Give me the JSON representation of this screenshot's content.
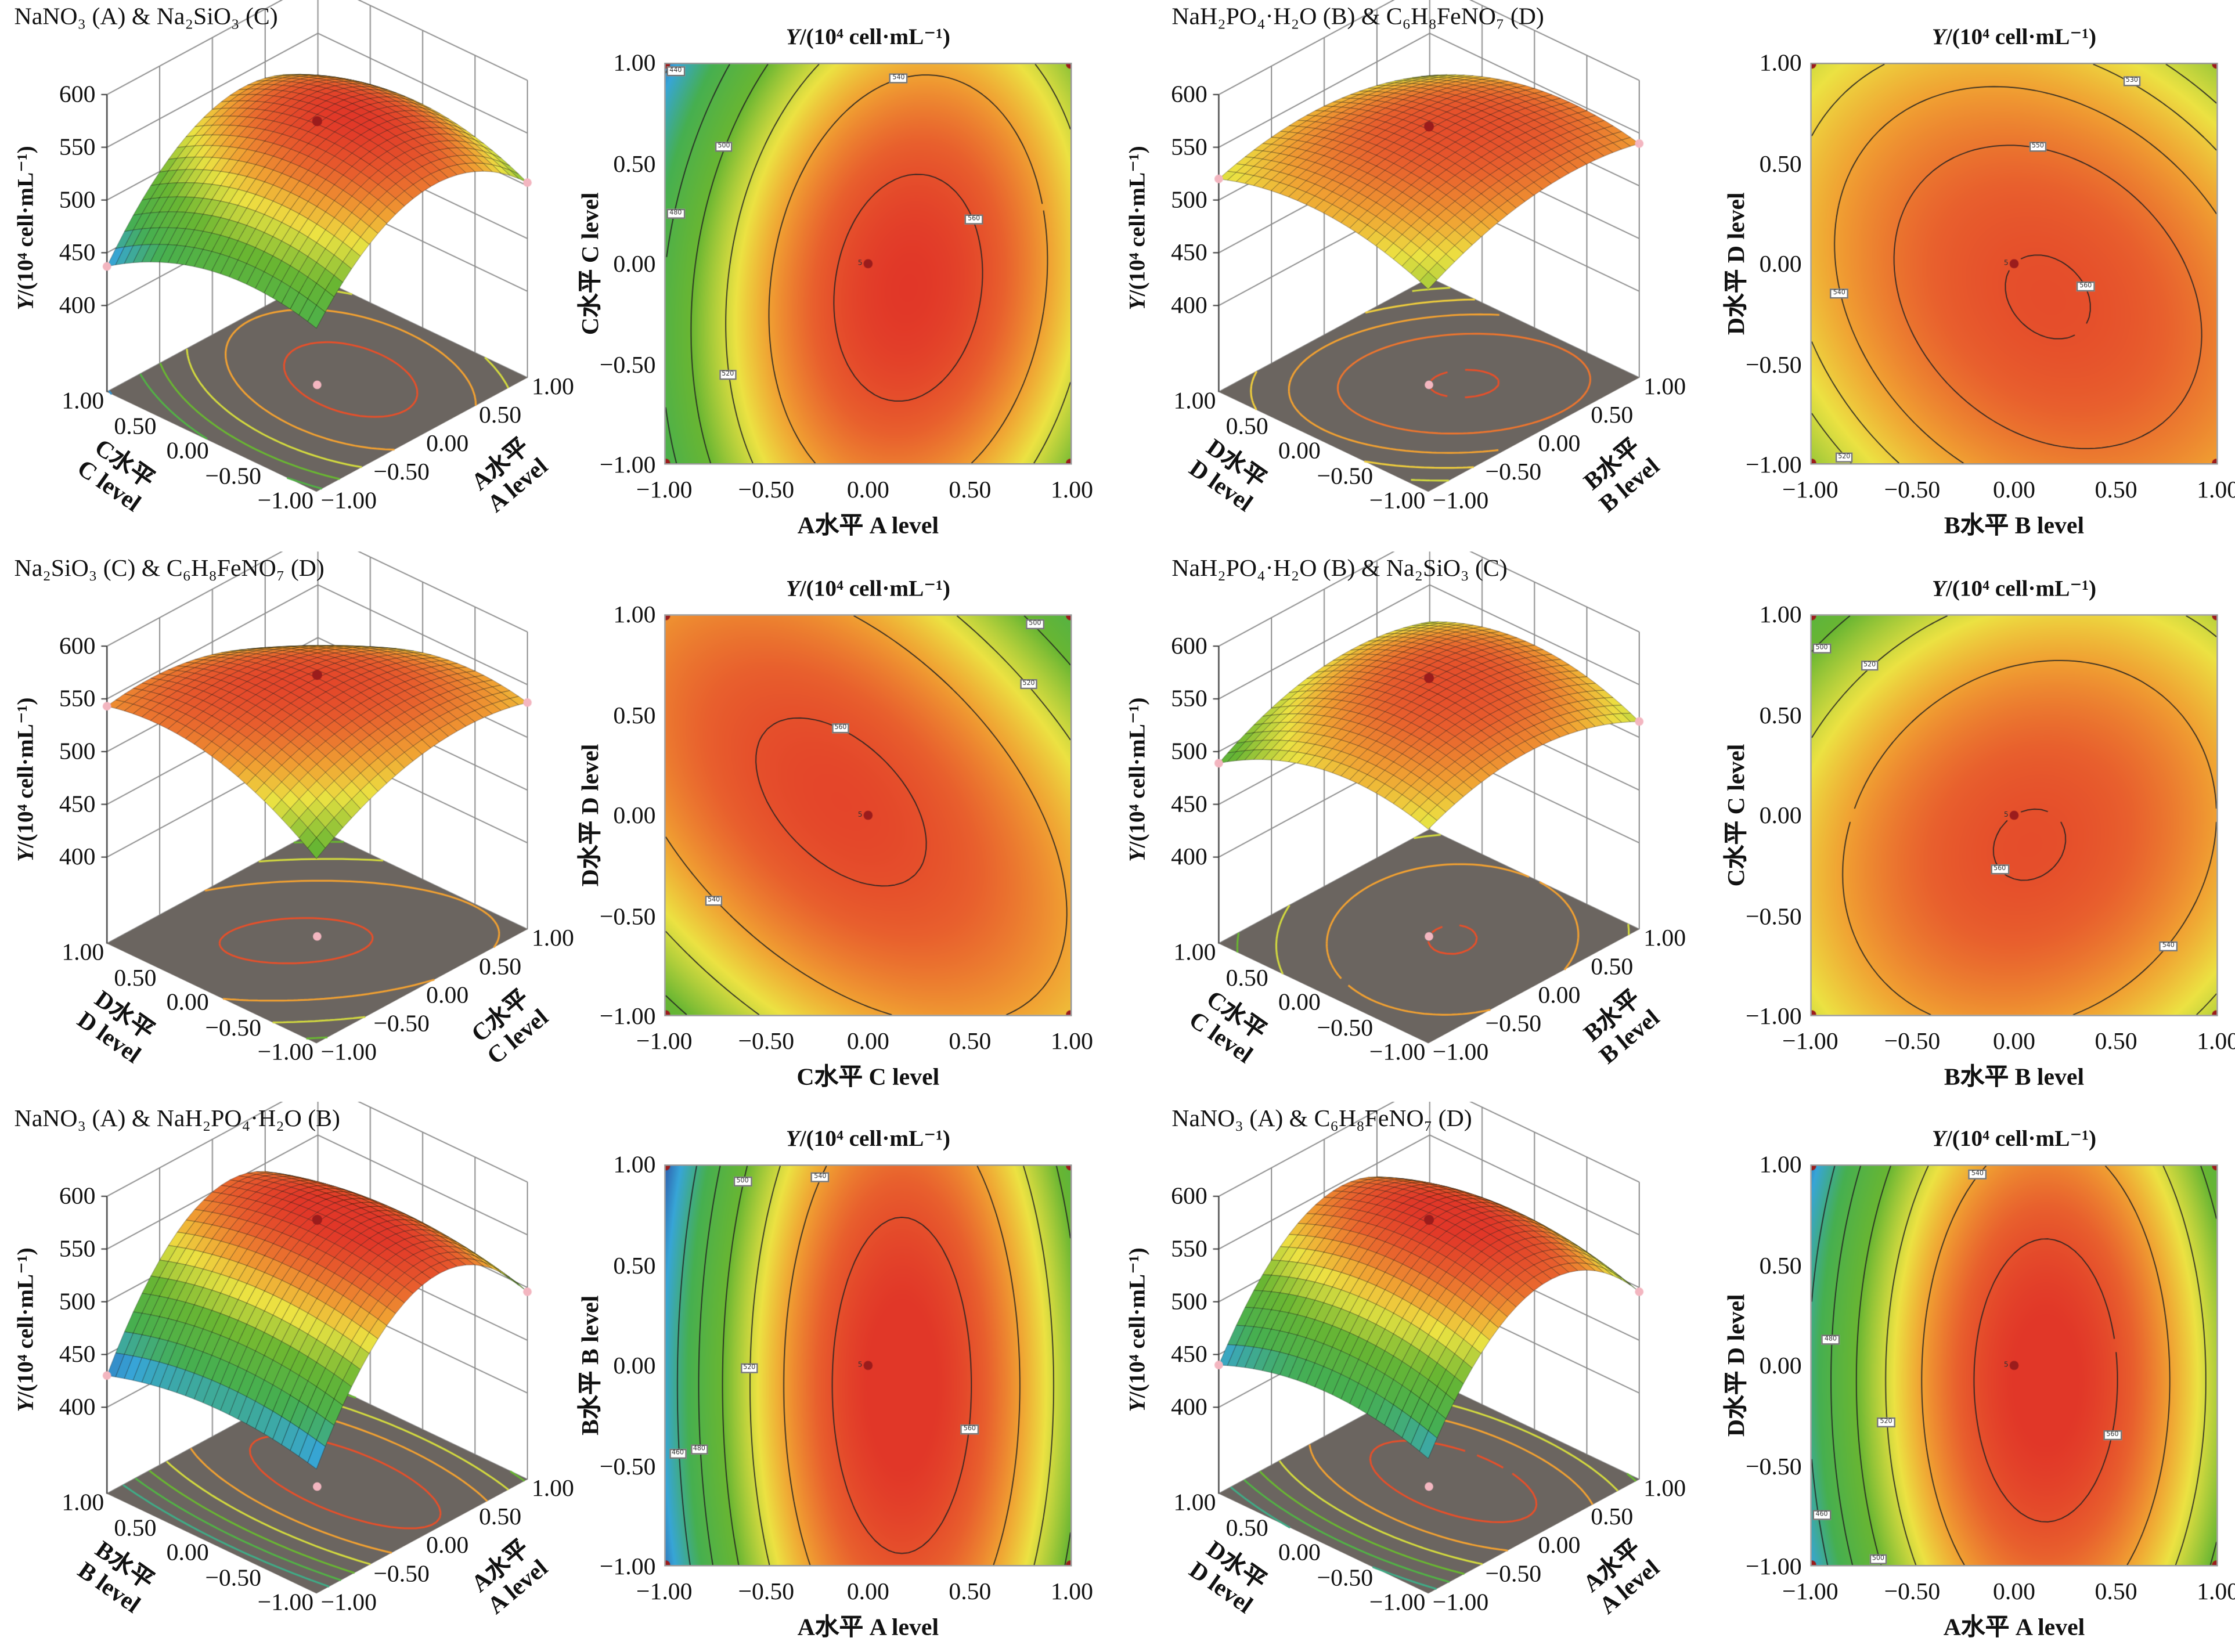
{
  "chart_data": [
    {
      "type": "response-surface",
      "title": "NaNO₃ (A) & Na₂SiO₃ (C)",
      "z_label_var": "Y",
      "z_label_unit": "/(10⁴ cell·mL⁻¹)",
      "z_ticks": [
        "400",
        "450",
        "500",
        "550",
        "600"
      ],
      "x_factor": {
        "cn": "A水平",
        "en": "A level"
      },
      "y_factor": {
        "cn": "C水平",
        "en": "C level"
      },
      "ticks": [
        "−1.00",
        "−0.50",
        "0.00",
        "0.50",
        "1.00"
      ],
      "xlim": [
        -1,
        1
      ],
      "ylim": [
        -1,
        1
      ],
      "zlim": [
        400,
        600
      ],
      "contour_levels": [
        440,
        480,
        500,
        520,
        540,
        560
      ],
      "center_point_label": "5"
    },
    {
      "type": "response-surface",
      "title": "NaH₂PO₄·H₂O (B) & C₆H₈FeNO₇ (D)",
      "z_label_var": "Y",
      "z_label_unit": "/(10⁴ cell·mL⁻¹)",
      "z_ticks": [
        "400",
        "450",
        "500",
        "550",
        "600"
      ],
      "x_factor": {
        "cn": "B水平",
        "en": "B level"
      },
      "y_factor": {
        "cn": "D水平",
        "en": "D level"
      },
      "ticks": [
        "−1.00",
        "−0.50",
        "0.00",
        "0.50",
        "1.00"
      ],
      "xlim": [
        -1,
        1
      ],
      "ylim": [
        -1,
        1
      ],
      "zlim": [
        400,
        600
      ],
      "contour_levels": [
        510,
        520,
        530,
        540,
        550,
        560
      ],
      "center_point_label": "5"
    },
    {
      "type": "response-surface",
      "title": "Na₂SiO₃ (C) & C₆H₈FeNO₇ (D)",
      "z_label_var": "Y",
      "z_label_unit": "/(10⁴ cell·mL⁻¹)",
      "z_ticks": [
        "400",
        "450",
        "500",
        "550",
        "600"
      ],
      "x_factor": {
        "cn": "C水平",
        "en": "C level"
      },
      "y_factor": {
        "cn": "D水平",
        "en": "D level"
      },
      "ticks": [
        "−1.00",
        "−0.50",
        "0.00",
        "0.50",
        "1.00"
      ],
      "xlim": [
        -1,
        1
      ],
      "ylim": [
        -1,
        1
      ],
      "zlim": [
        400,
        600
      ],
      "contour_levels": [
        480,
        500,
        520,
        540,
        560
      ],
      "center_point_label": "5"
    },
    {
      "type": "response-surface",
      "title": "NaH₂PO₄·H₂O (B) & Na₂SiO₃ (C)",
      "z_label_var": "Y",
      "z_label_unit": "/(10⁴ cell·mL⁻¹)",
      "z_ticks": [
        "400",
        "450",
        "500",
        "550",
        "600"
      ],
      "x_factor": {
        "cn": "B水平",
        "en": "B level"
      },
      "y_factor": {
        "cn": "C水平",
        "en": "C level"
      },
      "ticks": [
        "−1.00",
        "−0.50",
        "0.00",
        "0.50",
        "1.00"
      ],
      "xlim": [
        -1,
        1
      ],
      "ylim": [
        -1,
        1
      ],
      "zlim": [
        400,
        600
      ],
      "contour_levels": [
        500,
        520,
        540,
        560
      ],
      "center_point_label": "5"
    },
    {
      "type": "response-surface",
      "title": "NaNO₃ (A) & NaH₂PO₄·H₂O (B)",
      "z_label_var": "Y",
      "z_label_unit": "/(10⁴ cell·mL⁻¹)",
      "z_ticks": [
        "400",
        "450",
        "500",
        "550",
        "600"
      ],
      "x_factor": {
        "cn": "A水平",
        "en": "A level"
      },
      "y_factor": {
        "cn": "B水平",
        "en": "B level"
      },
      "ticks": [
        "−1.00",
        "−0.50",
        "0.00",
        "0.50",
        "1.00"
      ],
      "xlim": [
        -1,
        1
      ],
      "ylim": [
        -1,
        1
      ],
      "zlim": [
        400,
        600
      ],
      "contour_levels": [
        460,
        480,
        500,
        520,
        540,
        560
      ],
      "center_point_label": "5"
    },
    {
      "type": "response-surface",
      "title": "NaNO₃ (A) & C₆H₈FeNO₇ (D)",
      "z_label_var": "Y",
      "z_label_unit": "/(10⁴ cell·mL⁻¹)",
      "z_ticks": [
        "400",
        "450",
        "500",
        "550",
        "600"
      ],
      "x_factor": {
        "cn": "A水平",
        "en": "A level"
      },
      "y_factor": {
        "cn": "D水平",
        "en": "D level"
      },
      "ticks": [
        "−1.00",
        "−0.50",
        "0.00",
        "0.50",
        "1.00"
      ],
      "xlim": [
        -1,
        1
      ],
      "ylim": [
        -1,
        1
      ],
      "zlim": [
        400,
        600
      ],
      "contour_levels": [
        460,
        480,
        500,
        520,
        540,
        560
      ],
      "center_point_label": "5"
    }
  ],
  "colors": {
    "floor": "#6b6560",
    "contour_line": "#222222",
    "design_point": "#9b1c1c",
    "wall_grid": "#8a8a8a"
  }
}
